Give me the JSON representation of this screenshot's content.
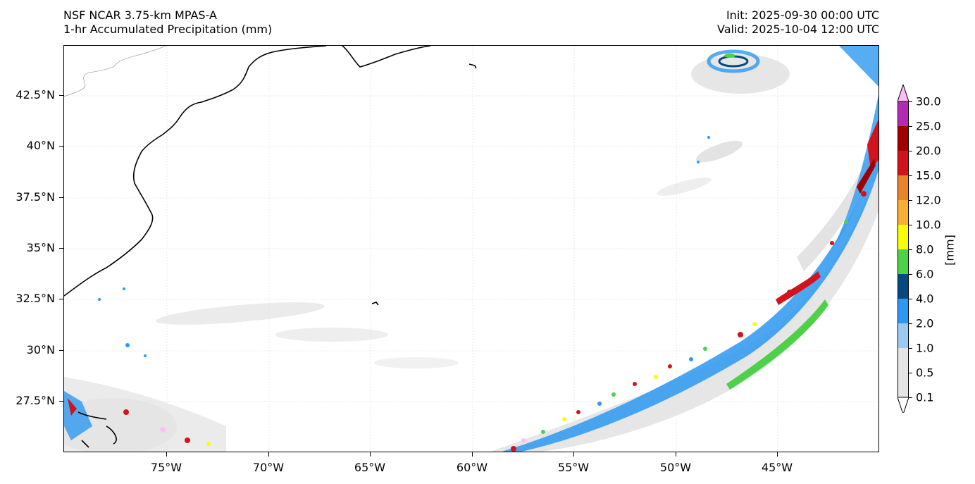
{
  "header": {
    "model": "NSF NCAR 3.75-km MPAS-A",
    "field": "1-hr Accumulated Precipitation (mm)",
    "init": "Init: 2025-09-30 00:00 UTC",
    "valid": "Valid: 2025-10-04 12:00 UTC"
  },
  "map": {
    "lon_range": [
      -80,
      -40
    ],
    "lat_range": [
      25,
      44.9
    ],
    "lat_ticks": [
      "42.5°N",
      "40°N",
      "37.5°N",
      "35°N",
      "32.5°N",
      "30°N",
      "27.5°N"
    ],
    "lon_ticks": [
      "75°W",
      "70°W",
      "65°W",
      "60°W",
      "55°W",
      "50°W",
      "45°W"
    ],
    "gridlines": true
  },
  "colorbar": {
    "levels": [
      "30.0",
      "25.0",
      "20.0",
      "15.0",
      "12.0",
      "10.0",
      "8.0",
      "6.0",
      "4.0",
      "2.0",
      "1.0",
      "0.5",
      "0.1"
    ],
    "colors": [
      "#ffbdf6",
      "#b12bb5",
      "#a00000",
      "#d2131b",
      "#e8842b",
      "#f7ae32",
      "#fbfb0b",
      "#4dd149",
      "#05497f",
      "#2d98f1",
      "#9bc9f2",
      "#e5e5e5"
    ],
    "unit": "[mm]"
  }
}
